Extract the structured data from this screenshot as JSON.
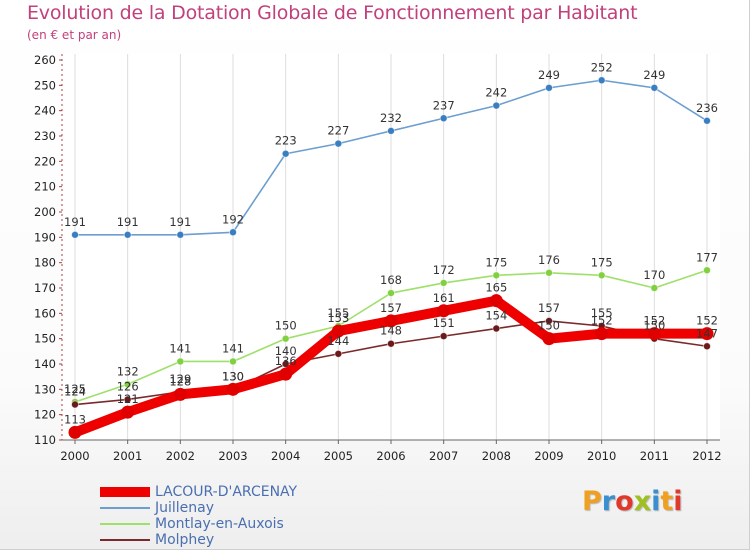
{
  "title": "Evolution de la Dotation Globale de Fonctionnement par Habitant",
  "subtitle": "(en € et par an)",
  "brand": {
    "letters": [
      "P",
      "r",
      "o",
      "x",
      "i",
      "t",
      "i"
    ],
    "colors": [
      "#f0a020",
      "#3a8fd0",
      "#e0382a",
      "#a0c020",
      "#3a8fd0",
      "#f0a020",
      "#e0382a"
    ]
  },
  "chart_data": {
    "type": "line",
    "title": "Evolution de la Dotation Globale de Fonctionnement par Habitant",
    "subtitle": "(en € et par an)",
    "xlabel": "",
    "ylabel": "",
    "x": [
      2000,
      2001,
      2002,
      2003,
      2004,
      2005,
      2006,
      2007,
      2008,
      2009,
      2010,
      2011,
      2012
    ],
    "x_labels": [
      "2000",
      "2001",
      "2002",
      "2003",
      "2004",
      "2005",
      "2006",
      "2007",
      "2008",
      "2009",
      "2010",
      "2011",
      "2012"
    ],
    "ylim": [
      110,
      260
    ],
    "yticks": [
      110,
      120,
      130,
      140,
      150,
      160,
      170,
      180,
      190,
      200,
      210,
      220,
      230,
      240,
      250,
      260
    ],
    "grid": "vertical",
    "legend_position": "bottom-left",
    "series": [
      {
        "name": "Juillenay",
        "color": "#6c9ed0",
        "marker_color": "#3a7ec2",
        "emphasis": false,
        "values": [
          191,
          191,
          191,
          192,
          223,
          227,
          232,
          237,
          242,
          249,
          252,
          249,
          236
        ]
      },
      {
        "name": "Montlay-en-Auxois",
        "color": "#9ee06a",
        "marker_color": "#80d040",
        "emphasis": false,
        "values": [
          125,
          132,
          141,
          141,
          150,
          155,
          168,
          172,
          175,
          176,
          175,
          170,
          177
        ]
      },
      {
        "name": "Molphey",
        "color": "#7a2a2a",
        "marker_color": "#6a1a1a",
        "emphasis": false,
        "values": [
          124,
          126,
          129,
          130,
          140,
          144,
          148,
          151,
          154,
          157,
          155,
          150,
          147
        ]
      },
      {
        "name": "LACOUR-D'ARCENAY",
        "color": "#ee0000",
        "marker_color": "#e00000",
        "emphasis": true,
        "values": [
          113,
          121,
          128,
          130,
          136,
          153,
          157,
          161,
          165,
          150,
          152,
          152,
          152
        ]
      }
    ],
    "legend_order": [
      "LACOUR-D'ARCENAY",
      "Juillenay",
      "Montlay-en-Auxois",
      "Molphey"
    ]
  }
}
